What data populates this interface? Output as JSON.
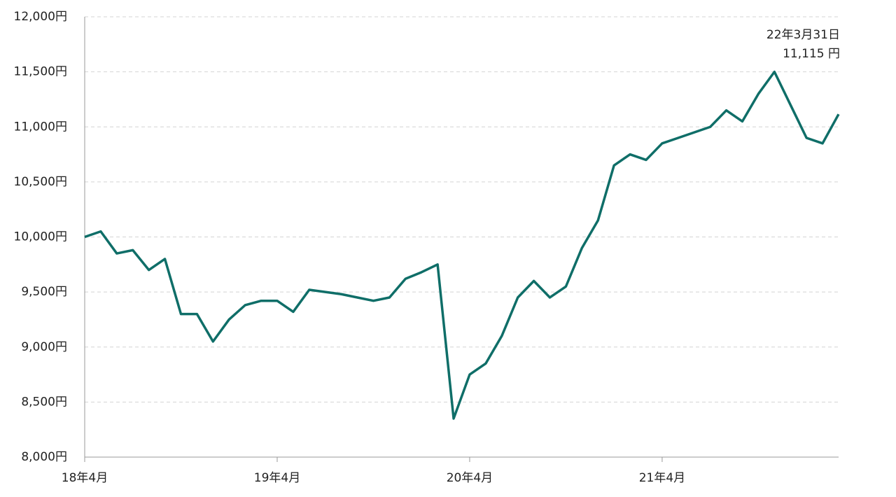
{
  "chart_data": {
    "type": "line",
    "x": [
      "2018-04",
      "2018-05",
      "2018-06",
      "2018-07",
      "2018-08",
      "2018-09",
      "2018-10",
      "2018-11",
      "2018-12",
      "2019-01",
      "2019-02",
      "2019-03",
      "2019-04",
      "2019-05",
      "2019-06",
      "2019-07",
      "2019-08",
      "2019-09",
      "2019-10",
      "2019-11",
      "2019-12",
      "2020-01",
      "2020-02",
      "2020-03",
      "2020-04",
      "2020-05",
      "2020-06",
      "2020-07",
      "2020-08",
      "2020-09",
      "2020-10",
      "2020-11",
      "2020-12",
      "2021-01",
      "2021-02",
      "2021-03",
      "2021-04",
      "2021-05",
      "2021-06",
      "2021-07",
      "2021-08",
      "2021-09",
      "2021-10",
      "2021-11",
      "2021-12",
      "2022-01",
      "2022-02",
      "2022-03"
    ],
    "values": [
      10000,
      10050,
      9850,
      9880,
      9700,
      9800,
      9300,
      9300,
      9050,
      9250,
      9380,
      9420,
      9420,
      9320,
      9520,
      9500,
      9480,
      9450,
      9420,
      9450,
      9620,
      9680,
      9750,
      8350,
      8750,
      8850,
      9100,
      9450,
      9600,
      9450,
      9550,
      9900,
      10150,
      10650,
      10750,
      10700,
      10850,
      10900,
      10950,
      11000,
      11150,
      11050,
      11300,
      11500,
      11200,
      10900,
      10850,
      11115
    ],
    "value_labels": [
      null,
      null,
      null,
      null,
      null,
      null,
      null,
      null,
      null,
      null,
      null,
      null,
      null,
      null,
      null,
      null,
      null,
      null,
      null,
      null,
      null,
      null,
      null,
      null,
      null,
      null,
      null,
      null,
      null,
      null,
      null,
      null,
      null,
      null,
      null,
      null,
      null,
      null,
      null,
      null,
      null,
      null,
      null,
      null,
      null,
      null,
      null,
      "11,115 円"
    ],
    "annotation": "22年3月31日",
    "color": "#0f6e68",
    "ylim": [
      8000,
      12000
    ],
    "yticks": [
      {
        "value": 8000,
        "label": "8,000円"
      },
      {
        "value": 8500,
        "label": "8,500円"
      },
      {
        "value": 9000,
        "label": "9,000円"
      },
      {
        "value": 9500,
        "label": "9,500円"
      },
      {
        "value": 10000,
        "label": "10,000円"
      },
      {
        "value": 10500,
        "label": "10,500円"
      },
      {
        "value": 11000,
        "label": "11,000円"
      },
      {
        "value": 11500,
        "label": "11,500円"
      },
      {
        "value": 12000,
        "label": "12,000円"
      }
    ],
    "xticks": [
      {
        "value": "2018-04",
        "label": "18年4月"
      },
      {
        "value": "2019-04",
        "label": "19年4月"
      },
      {
        "value": "2020-04",
        "label": "20年4月"
      },
      {
        "value": "2021-04",
        "label": "21年4月"
      }
    ],
    "grid": true
  }
}
